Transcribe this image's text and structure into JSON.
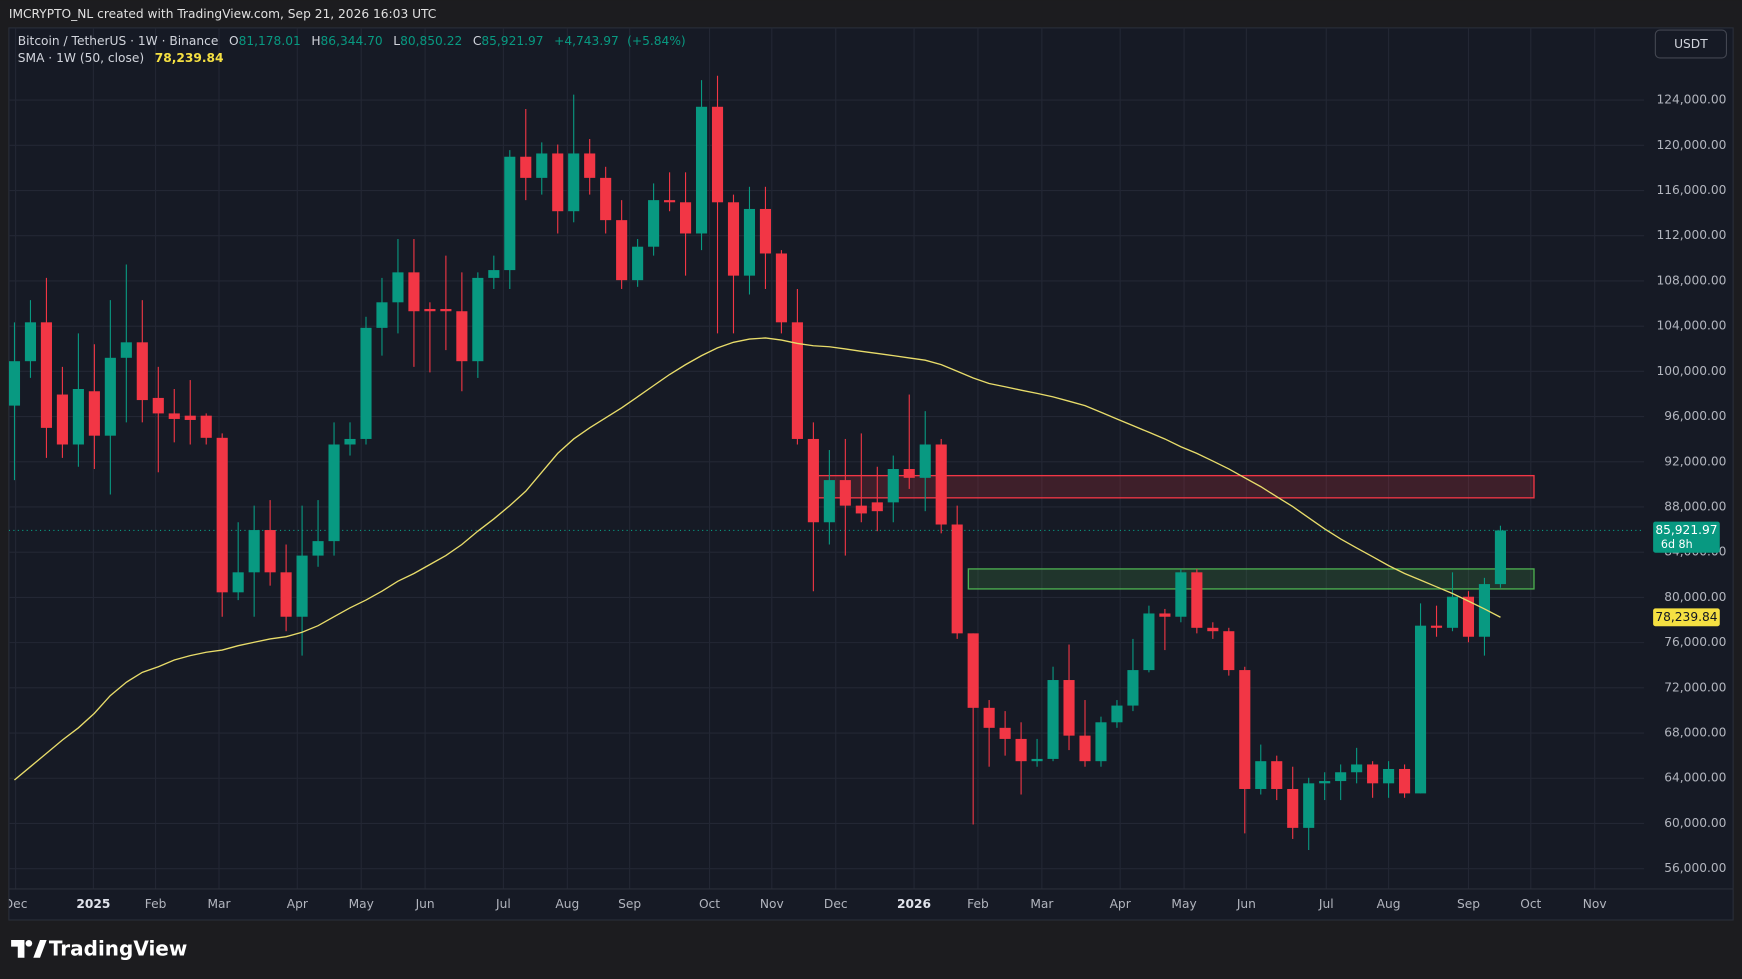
{
  "caption": "IMCRYPTO_NL created with TradingView.com, Sep 21, 2026 16:03 UTC",
  "brand": "TradingView",
  "currency_button": "USDT",
  "chart_data": {
    "type": "candlestick",
    "symbol": "Bitcoin / TetherUS · 1W · Binance",
    "ohlc_prefixes": [
      "O",
      "H",
      "L",
      "C"
    ],
    "ohlc_legend": {
      "open": {
        "value": 81178.01,
        "label": "81,178.01"
      },
      "high": {
        "value": 86344.7,
        "label": "86,344.70"
      },
      "low": {
        "value": 80850.22,
        "label": "80,850.22"
      },
      "close": {
        "value": 85921.97,
        "label": "85,921.97"
      },
      "change": {
        "value": 4743.97,
        "label": "+4,743.97"
      },
      "change_pct": {
        "value": 5.84,
        "label": "(+5.84%)"
      }
    },
    "up_color": "#089981",
    "down_color": "#f23645",
    "x": [
      0,
      1,
      2,
      3,
      4,
      5,
      6,
      7,
      8,
      9,
      10,
      11,
      12,
      13,
      14,
      15,
      16,
      17,
      18,
      19,
      20,
      21,
      22,
      23,
      24,
      25,
      26,
      27,
      28,
      29,
      30,
      31,
      32,
      33,
      34,
      35,
      36,
      37,
      38,
      39,
      40,
      41,
      42,
      43,
      44,
      45,
      46,
      47,
      48,
      49,
      50,
      51,
      52,
      53,
      54,
      55,
      56,
      57,
      58,
      59,
      60,
      61,
      62,
      63,
      64,
      65,
      66,
      67,
      68,
      69,
      70,
      71,
      72,
      73,
      74,
      75,
      76,
      77,
      78,
      79,
      80,
      81,
      82,
      83,
      84,
      85,
      86,
      87,
      88,
      89,
      90,
      91,
      92,
      93
    ],
    "open": [
      96970,
      100900,
      104340,
      97950,
      93530,
      98240,
      94310,
      101200,
      102570,
      97650,
      96280,
      96080,
      96080,
      94120,
      80450,
      82220,
      85960,
      82220,
      78290,
      83700,
      84980,
      93530,
      94020,
      103850,
      106110,
      108760,
      105520,
      105520,
      105320,
      100900,
      108270,
      108960,
      118990,
      117120,
      119280,
      114170,
      119280,
      117120,
      113380,
      108070,
      111030,
      115150,
      114960,
      112200,
      123410,
      114960,
      108470,
      114370,
      110430,
      104340,
      94020,
      86650,
      90380,
      88120,
      88410,
      88410,
      91360,
      90580,
      93530,
      86450,
      76820,
      70230,
      68460,
      67480,
      65510,
      65710,
      72690,
      67770,
      65510,
      68950,
      70430,
      73570,
      78580,
      78290,
      82220,
      77310,
      77010,
      73570,
      63050,
      65510,
      63050,
      59610,
      63550,
      63750,
      64530,
      65220,
      63550,
      64820,
      62660,
      77500,
      77310,
      80060,
      76520,
      81178.01
    ],
    "high": [
      104340,
      106300,
      108270,
      100400,
      103360,
      102400,
      106300,
      109450,
      106300,
      100400,
      98440,
      99230,
      96280,
      94510,
      86650,
      88120,
      88610,
      84680,
      88120,
      88610,
      95490,
      95490,
      104830,
      108270,
      111710,
      111710,
      106110,
      110240,
      108760,
      108760,
      110240,
      119580,
      123210,
      120260,
      120070,
      124490,
      120560,
      118100,
      115150,
      111710,
      116630,
      117610,
      117610,
      125770,
      126160,
      115640,
      116330,
      116330,
      110730,
      107290,
      95490,
      93040,
      94020,
      94510,
      91560,
      92550,
      97950,
      96480,
      94020,
      88120,
      76820,
      70920,
      69940,
      68950,
      67480,
      73870,
      75830,
      70920,
      69450,
      70920,
      76330,
      79270,
      78980,
      82520,
      82520,
      77800,
      77310,
      73870,
      66980,
      66000,
      65020,
      64040,
      64530,
      65220,
      66690,
      65510,
      65510,
      65220,
      79470,
      79270,
      82220,
      80550,
      81730,
      86344.7
    ],
    "low": [
      90380,
      99420,
      92350,
      92350,
      91560,
      91360,
      89100,
      95490,
      95490,
      91070,
      93720,
      93530,
      93530,
      78290,
      79760,
      78290,
      81040,
      77010,
      74850,
      82710,
      83700,
      92550,
      93530,
      101390,
      103360,
      100400,
      99910,
      101880,
      98240,
      99420,
      107290,
      107290,
      115150,
      115640,
      112200,
      113190,
      115640,
      112200,
      107290,
      107480,
      110240,
      114170,
      108470,
      110730,
      103360,
      103360,
      106800,
      107290,
      103360,
      93530,
      80550,
      84680,
      83700,
      86650,
      85860,
      86650,
      89600,
      87630,
      85670,
      76330,
      59910,
      65020,
      66000,
      62560,
      65020,
      65510,
      66490,
      65020,
      65020,
      68460,
      69940,
      73370,
      75340,
      77800,
      76820,
      76330,
      73080,
      59120,
      62560,
      62070,
      58630,
      57650,
      62070,
      62070,
      63550,
      62270,
      62270,
      62270,
      62660,
      76520,
      77010,
      76030,
      74850,
      80850.22
    ],
    "close": [
      100900,
      104340,
      95000,
      93530,
      98440,
      94310,
      101200,
      102570,
      97460,
      96280,
      95790,
      95700,
      94120,
      80450,
      82220,
      85960,
      82220,
      78290,
      83700,
      84980,
      93530,
      94020,
      103850,
      106110,
      108760,
      105320,
      105320,
      105320,
      100900,
      108270,
      108960,
      118990,
      117120,
      119280,
      114170,
      119280,
      117120,
      113380,
      108070,
      111030,
      115150,
      114960,
      112200,
      123410,
      114960,
      108470,
      114370,
      110430,
      104340,
      94020,
      86650,
      90380,
      88120,
      87430,
      87630,
      91360,
      90580,
      93530,
      86450,
      76820,
      70230,
      68460,
      67480,
      65510,
      65710,
      72690,
      67770,
      65510,
      68950,
      70430,
      73570,
      78580,
      78290,
      82220,
      77310,
      77010,
      73570,
      63050,
      65510,
      63050,
      59610,
      63550,
      63750,
      64530,
      65220,
      63550,
      64820,
      62660,
      77500,
      77310,
      80060,
      76520,
      81180,
      85921.97
    ],
    "indicator": {
      "name": "SMA · 1W (50, close)",
      "color": "#e8dc6a",
      "values": [
        63840,
        65020,
        66200,
        67380,
        68460,
        69740,
        71310,
        72490,
        73370,
        73870,
        74460,
        74850,
        75150,
        75340,
        75730,
        76030,
        76330,
        76520,
        76920,
        77500,
        78290,
        79080,
        79770,
        80550,
        81440,
        82120,
        82910,
        83700,
        84680,
        85860,
        86940,
        88120,
        89400,
        91070,
        92740,
        94020,
        95000,
        95890,
        96770,
        97750,
        98740,
        99720,
        100600,
        101390,
        102080,
        102570,
        102860,
        102960,
        102770,
        102470,
        102270,
        102180,
        101980,
        101780,
        101590,
        101390,
        101190,
        100990,
        100600,
        100010,
        99420,
        98930,
        98640,
        98340,
        98050,
        97750,
        97360,
        96970,
        96380,
        95790,
        95200,
        94610,
        94020,
        93330,
        92740,
        92060,
        91370,
        90580,
        89800,
        88910,
        88030,
        87040,
        86060,
        85170,
        84380,
        83600,
        82810,
        82120,
        81530,
        80940,
        80350,
        79670,
        78980,
        78239.84
      ],
      "last": {
        "value": 78239.84,
        "label": "78,239.84"
      }
    },
    "last_price": {
      "value": 85921.97,
      "label": "85,921.97"
    },
    "countdown": "6d 8h",
    "zones": [
      {
        "color": "#f23645",
        "x": [
          49.9,
          95.1
        ],
        "ylim": [
          88810,
          90775
        ]
      },
      {
        "color": "#4caf50",
        "x": [
          59.7,
          95.1
        ],
        "ylim": [
          80750,
          82520
        ]
      }
    ],
    "xlim": [
      -0.35,
      102.0
    ],
    "ylim": [
      54210,
      130390
    ],
    "xticks": [
      {
        "value": 0.07,
        "label": "Dec"
      },
      {
        "value": 4.94,
        "label": "2025"
      },
      {
        "value": 8.83,
        "label": "Feb"
      },
      {
        "value": 12.8,
        "label": "Mar"
      },
      {
        "value": 17.7,
        "label": "Apr"
      },
      {
        "value": 21.7,
        "label": "May"
      },
      {
        "value": 25.7,
        "label": "Jun"
      },
      {
        "value": 30.6,
        "label": "Jul"
      },
      {
        "value": 34.6,
        "label": "Aug"
      },
      {
        "value": 38.5,
        "label": "Sep"
      },
      {
        "value": 43.5,
        "label": "Oct"
      },
      {
        "value": 47.4,
        "label": "Nov"
      },
      {
        "value": 51.4,
        "label": "Dec"
      },
      {
        "value": 56.3,
        "label": "2026"
      },
      {
        "value": 60.3,
        "label": "Feb"
      },
      {
        "value": 64.3,
        "label": "Mar"
      },
      {
        "value": 69.2,
        "label": "Apr"
      },
      {
        "value": 73.2,
        "label": "May"
      },
      {
        "value": 77.1,
        "label": "Jun"
      },
      {
        "value": 82.1,
        "label": "Jul"
      },
      {
        "value": 86.0,
        "label": "Aug"
      },
      {
        "value": 91.0,
        "label": "Sep"
      },
      {
        "value": 94.9,
        "label": "Oct"
      },
      {
        "value": 98.9,
        "label": "Nov"
      }
    ],
    "yticks": [
      {
        "value": 56000,
        "label": "56,000.00"
      },
      {
        "value": 60000,
        "label": "60,000.00"
      },
      {
        "value": 64000,
        "label": "64,000.00"
      },
      {
        "value": 68000,
        "label": "68,000.00"
      },
      {
        "value": 72000,
        "label": "72,000.00"
      },
      {
        "value": 76000,
        "label": "76,000.00"
      },
      {
        "value": 80000,
        "label": "80,000.00"
      },
      {
        "value": 84000,
        "label": "84,000.00"
      },
      {
        "value": 88000,
        "label": "88,000.00"
      },
      {
        "value": 92000,
        "label": "92,000.00"
      },
      {
        "value": 96000,
        "label": "96,000.00"
      },
      {
        "value": 100000,
        "label": "100,000.00"
      },
      {
        "value": 104000,
        "label": "104,000.00"
      },
      {
        "value": 108000,
        "label": "108,000.00"
      },
      {
        "value": 112000,
        "label": "112,000.00"
      },
      {
        "value": 116000,
        "label": "116,000.00"
      },
      {
        "value": 120000,
        "label": "120,000.00"
      },
      {
        "value": 124000,
        "label": "124,000.00"
      }
    ],
    "grid": true
  }
}
